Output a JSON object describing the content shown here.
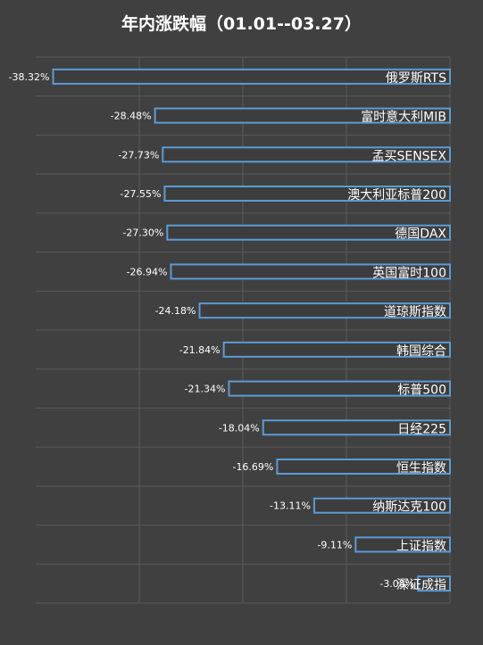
{
  "chart_data": {
    "type": "bar",
    "orientation": "horizontal",
    "title": "年内涨跌幅（01.01--03.27）",
    "xlabel": "",
    "ylabel": "",
    "xlim": [
      -40,
      0
    ],
    "grid": true,
    "legend": "none",
    "categories": [
      "俄罗斯RTS",
      "富时意大利MIB",
      "孟买SENSEX",
      "澳大利亚标普200",
      "德国DAX",
      "英国富时100",
      "道琼斯指数",
      "韩国综合",
      "标普500",
      "日经225",
      "恒生指数",
      "纳斯达克100",
      "上证指数",
      "深证成指"
    ],
    "values": [
      -38.32,
      -28.48,
      -27.73,
      -27.55,
      -27.3,
      -26.94,
      -24.18,
      -21.84,
      -21.34,
      -18.04,
      -16.69,
      -13.11,
      -9.11,
      -3.08
    ],
    "labels": [
      "-38.32%",
      "-28.48%",
      "-27.73%",
      "-27.55%",
      "-27.30%",
      "-26.94%",
      "-24.18%",
      "-21.84%",
      "-21.34%",
      "-18.04%",
      "-16.69%",
      "-13.11%",
      "-9.11%",
      "-3.08%"
    ],
    "colors": {
      "background": "#404040",
      "bar_fill": "#3d3d3d",
      "bar_border": "#5b9bd5",
      "grid": "#5a5a5a",
      "text": "#ffffff"
    }
  }
}
